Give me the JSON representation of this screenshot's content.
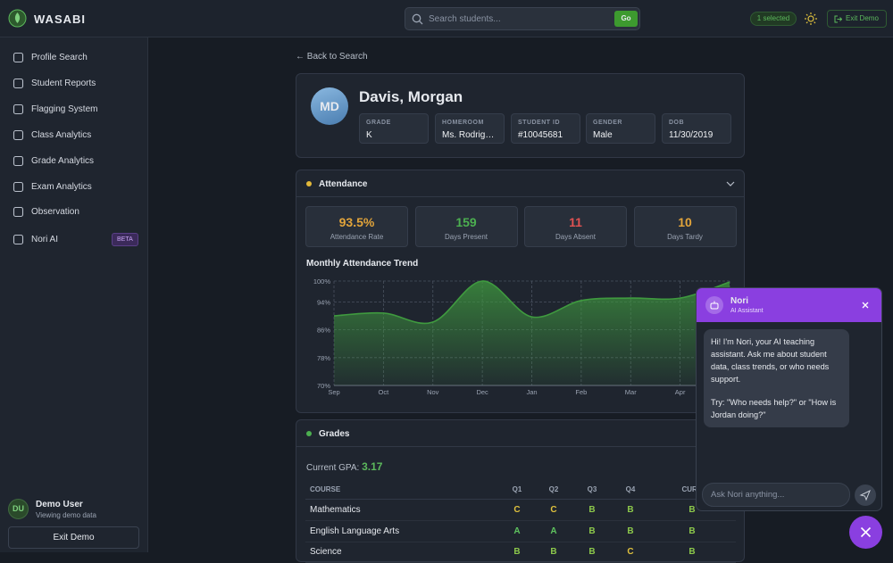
{
  "header": {
    "brand": "WASABI",
    "search_placeholder": "Search students...",
    "go": "Go",
    "selected": "1 selected",
    "exit": "Exit Demo"
  },
  "sidebar": {
    "items": [
      {
        "label": "Profile Search"
      },
      {
        "label": "Student Reports"
      },
      {
        "label": "Flagging System"
      },
      {
        "label": "Class Analytics"
      },
      {
        "label": "Grade Analytics"
      },
      {
        "label": "Exam Analytics"
      },
      {
        "label": "Observation"
      },
      {
        "label": "Nori AI",
        "badge": "BETA"
      }
    ],
    "user": {
      "initials": "DU",
      "name": "Demo User",
      "subtitle": "Viewing demo data"
    },
    "exit": "Exit Demo"
  },
  "main": {
    "back": "Back to Search",
    "profile": {
      "initials": "MD",
      "name": "Davis, Morgan",
      "fields": [
        {
          "label": "GRADE",
          "value": "K"
        },
        {
          "label": "HOMEROOM",
          "value": "Ms. Rodrigu..."
        },
        {
          "label": "STUDENT ID",
          "value": "#10045681"
        },
        {
          "label": "GENDER",
          "value": "Male"
        },
        {
          "label": "DOB",
          "value": "11/30/2019"
        }
      ]
    },
    "attendance": {
      "title": "Attendance",
      "stats": [
        {
          "value": "93.5%",
          "label": "Attendance Rate",
          "color": "#e2a43a"
        },
        {
          "value": "159",
          "label": "Days Present",
          "color": "#4caf50"
        },
        {
          "value": "11",
          "label": "Days Absent",
          "color": "#e05252"
        },
        {
          "value": "10",
          "label": "Days Tardy",
          "color": "#e2a43a"
        }
      ]
    },
    "grades": {
      "title": "Grades",
      "gpa_label": "Current GPA:",
      "gpa": "3.17",
      "columns": [
        "COURSE",
        "Q1",
        "Q2",
        "Q3",
        "Q4",
        "CURR"
      ],
      "rows": [
        [
          "Mathematics",
          "C",
          "C",
          "B",
          "B",
          "B"
        ],
        [
          "English Language Arts",
          "A",
          "A",
          "B",
          "B",
          "B"
        ],
        [
          "Science",
          "B",
          "B",
          "B",
          "C",
          "B"
        ]
      ],
      "grade_colors": {
        "A": "#5fc45f",
        "B": "#8cc84b",
        "C": "#e0c23e"
      }
    }
  },
  "chart_data": {
    "type": "line",
    "title": "Monthly Attendance Trend",
    "categories": [
      "Sep",
      "Oct",
      "Nov",
      "Dec",
      "Jan",
      "Feb",
      "Mar",
      "Apr",
      null
    ],
    "values": [
      90,
      90.8,
      88.2,
      100,
      89.7,
      94.4,
      95.1,
      95.1,
      99.7
    ],
    "color": "#3f9a3f",
    "ylim": [
      70,
      100
    ],
    "yticks": [
      {
        "value": 70,
        "label": "70%"
      },
      {
        "value": 78,
        "label": "78%"
      },
      {
        "value": 86,
        "label": "86%"
      },
      {
        "value": 94,
        "label": "94%"
      },
      {
        "value": 100,
        "label": "100%"
      }
    ],
    "grid": true
  },
  "chat": {
    "title": "Nori",
    "subtitle": "AI Assistant",
    "message": [
      "Hi! I'm Nori, your AI teaching assistant. Ask me about student data, class trends, or who needs support.",
      "Try: \"Who needs help?\" or \"How is Jordan doing?\""
    ],
    "placeholder": "Ask Nori anything..."
  }
}
